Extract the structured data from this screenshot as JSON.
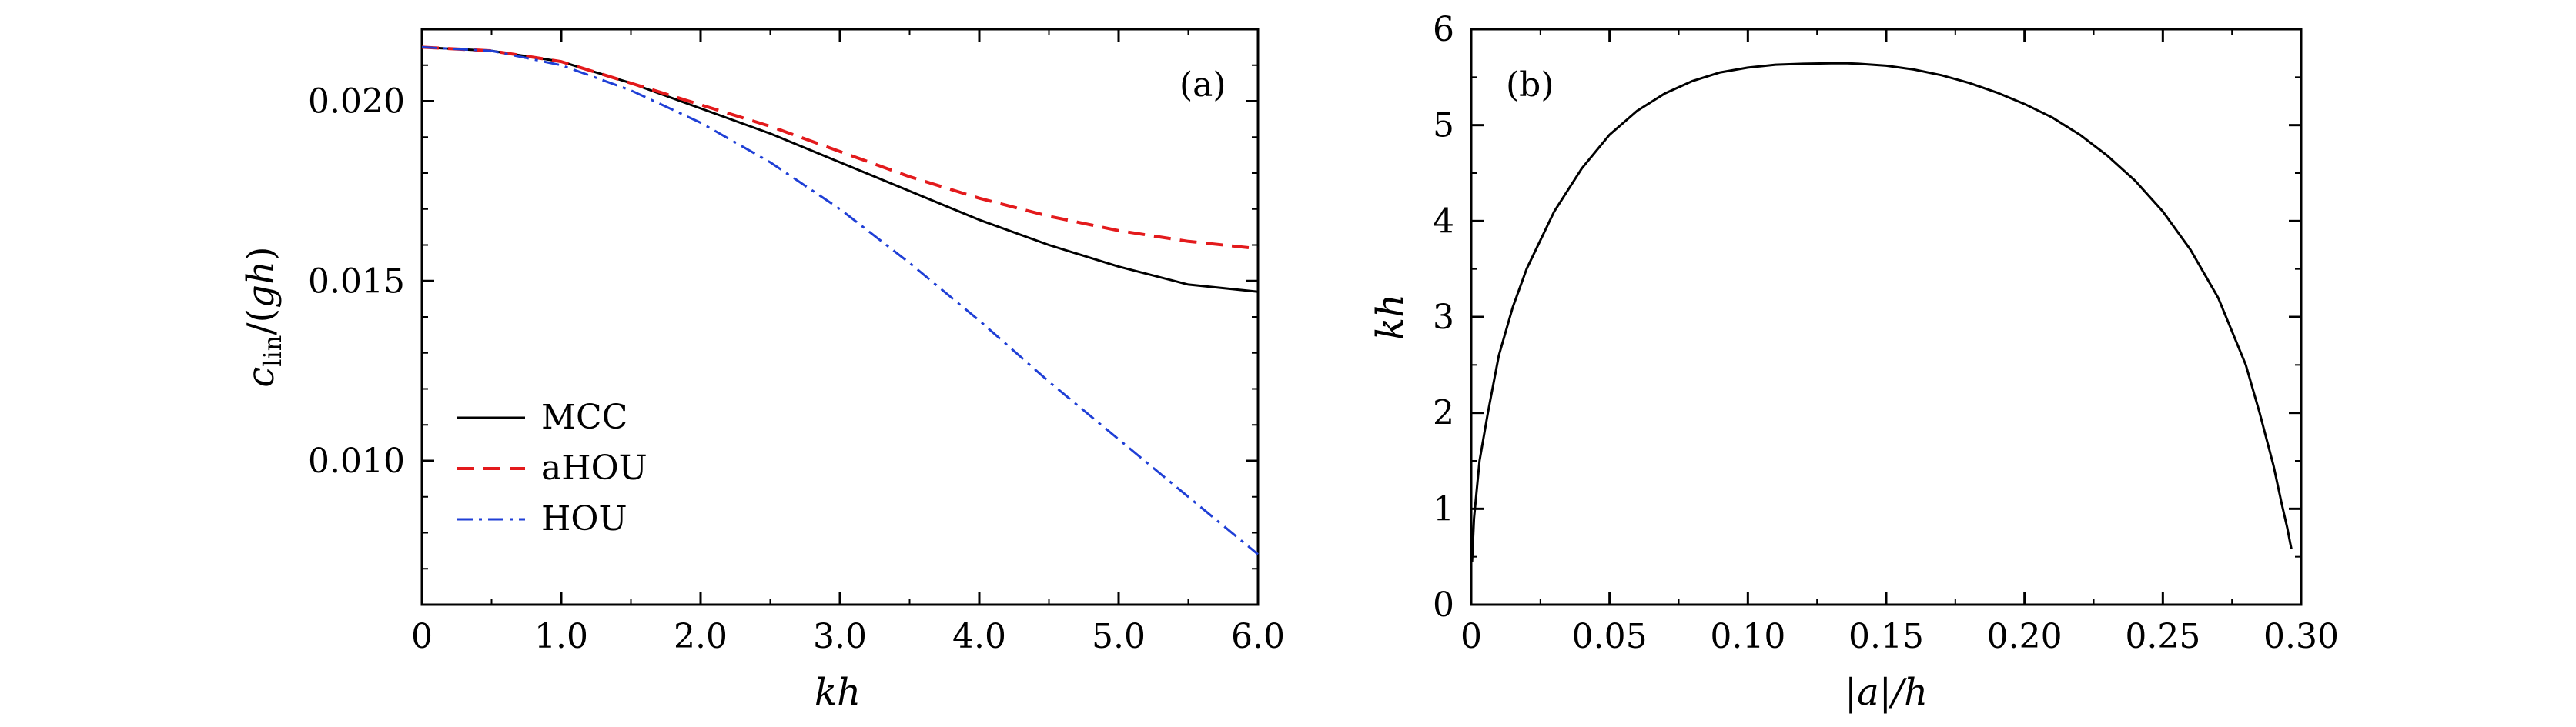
{
  "chart_data": [
    {
      "type": "line",
      "panel_label": "(a)",
      "xlabel": "kh",
      "ylabel": "c_lin/(gh)",
      "xlim": [
        0,
        6
      ],
      "ylim": [
        0.006,
        0.022
      ],
      "x_ticks": [
        "0",
        "1.0",
        "2.0",
        "3.0",
        "4.0",
        "5.0",
        "6.0"
      ],
      "y_ticks": [
        "0.010",
        "0.015",
        "0.020"
      ],
      "legend_position": "lower-left",
      "series": [
        {
          "name": "MCC",
          "color": "#000000",
          "style": "solid",
          "x": [
            0,
            0.5,
            1.0,
            1.5,
            2.0,
            2.5,
            3.0,
            3.5,
            4.0,
            4.5,
            5.0,
            5.5,
            6.0
          ],
          "y": [
            0.0215,
            0.0214,
            0.0211,
            0.0205,
            0.0198,
            0.0191,
            0.0183,
            0.0175,
            0.0167,
            0.016,
            0.0154,
            0.0149,
            0.0147
          ]
        },
        {
          "name": "aHOU",
          "color": "#e31a1c",
          "style": "dashed",
          "x": [
            0,
            0.5,
            1.0,
            1.5,
            2.0,
            2.5,
            3.0,
            3.5,
            4.0,
            4.5,
            5.0,
            5.5,
            6.0
          ],
          "y": [
            0.0215,
            0.0214,
            0.0211,
            0.0205,
            0.0199,
            0.0193,
            0.0186,
            0.0179,
            0.0173,
            0.0168,
            0.0164,
            0.0161,
            0.0159
          ]
        },
        {
          "name": "HOU",
          "color": "#1f3fd6",
          "style": "dashdot",
          "x": [
            0,
            0.5,
            1.0,
            1.5,
            2.0,
            2.5,
            3.0,
            3.5,
            4.0,
            4.5,
            5.0,
            5.5,
            6.0
          ],
          "y": [
            0.0215,
            0.0214,
            0.021,
            0.0203,
            0.0194,
            0.0183,
            0.017,
            0.0155,
            0.0139,
            0.0122,
            0.0106,
            0.009,
            0.0074
          ]
        }
      ]
    },
    {
      "type": "line",
      "panel_label": "(b)",
      "xlabel": "|a|/h",
      "ylabel": "kh",
      "xlim": [
        0,
        0.3
      ],
      "ylim": [
        0,
        6
      ],
      "x_ticks": [
        "0",
        "0.05",
        "0.10",
        "0.15",
        "0.20",
        "0.25",
        "0.30"
      ],
      "y_ticks": [
        "0",
        "1",
        "2",
        "3",
        "4",
        "5",
        "6"
      ],
      "series": [
        {
          "color": "#000000",
          "style": "solid",
          "x": [
            0.0003,
            0.001,
            0.003,
            0.006,
            0.01,
            0.015,
            0.02,
            0.03,
            0.04,
            0.05,
            0.06,
            0.07,
            0.08,
            0.09,
            0.1,
            0.11,
            0.12,
            0.13,
            0.136,
            0.14,
            0.15,
            0.16,
            0.17,
            0.18,
            0.19,
            0.2,
            0.21,
            0.22,
            0.23,
            0.24,
            0.25,
            0.26,
            0.27,
            0.28,
            0.285,
            0.29,
            0.293,
            0.295,
            0.296,
            0.2965
          ],
          "y": [
            0.45,
            0.9,
            1.5,
            2.0,
            2.6,
            3.1,
            3.5,
            4.1,
            4.55,
            4.9,
            5.15,
            5.33,
            5.46,
            5.55,
            5.6,
            5.63,
            5.64,
            5.645,
            5.645,
            5.64,
            5.62,
            5.58,
            5.52,
            5.44,
            5.34,
            5.22,
            5.08,
            4.9,
            4.68,
            4.42,
            4.1,
            3.7,
            3.2,
            2.5,
            2.0,
            1.45,
            1.05,
            0.8,
            0.65,
            0.58
          ]
        }
      ]
    }
  ]
}
